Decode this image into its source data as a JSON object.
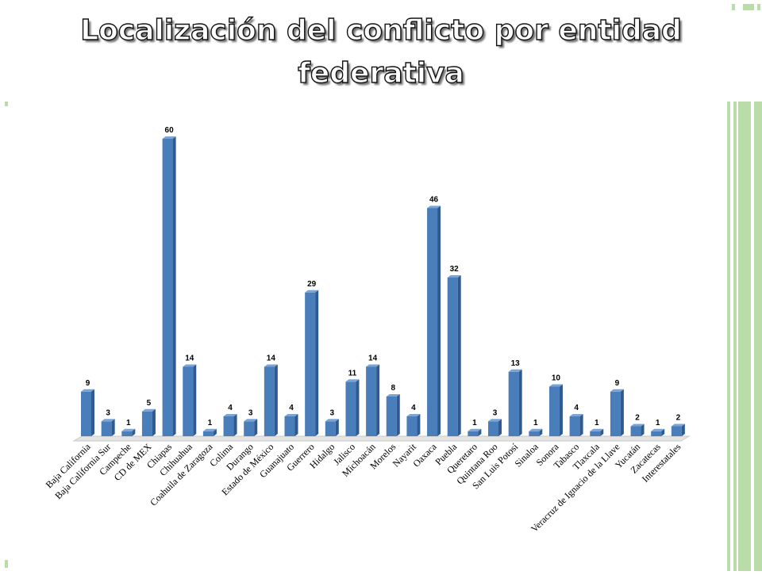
{
  "slide": {
    "title": "Localización del conflicto por entidad federativa"
  },
  "theme": {
    "bar_front": "#4a7ebb",
    "bar_side": "#2f5a8f",
    "bar_top": "#7aa3d6",
    "floor": "#c9c9c9",
    "accent_green": "#b9dca8"
  },
  "chart_data": {
    "type": "bar",
    "title": "",
    "xlabel": "",
    "ylabel": "",
    "ylim": [
      0,
      60
    ],
    "grid": false,
    "legend": "none",
    "categories": [
      "Baja California",
      "Baja California Sur",
      "Campeche",
      "CD de MEX",
      "Chiapas",
      "Chihuahua",
      "Coahuila de Zaragoza",
      "Colima",
      "Durango",
      "Estado de México",
      "Guanajuato",
      "Guerrero",
      "Hidalgo",
      "Jalisco",
      "Michoacán",
      "Morelos",
      "Nayarit",
      "Oaxaca",
      "Puebla",
      "Queretaro",
      "Quintana Roo",
      "San Luis Potosí",
      "Sinaloa",
      "Sonora",
      "Tabasco",
      "Tlaxcala",
      "Veracruz de Ignacio de la Llave",
      "Yucatán",
      "Zacatecas",
      "Interestatales"
    ],
    "values": [
      9,
      3,
      1,
      5,
      60,
      14,
      1,
      4,
      3,
      14,
      4,
      29,
      3,
      11,
      14,
      8,
      4,
      46,
      32,
      1,
      3,
      13,
      1,
      10,
      4,
      1,
      9,
      2,
      1,
      2
    ]
  }
}
